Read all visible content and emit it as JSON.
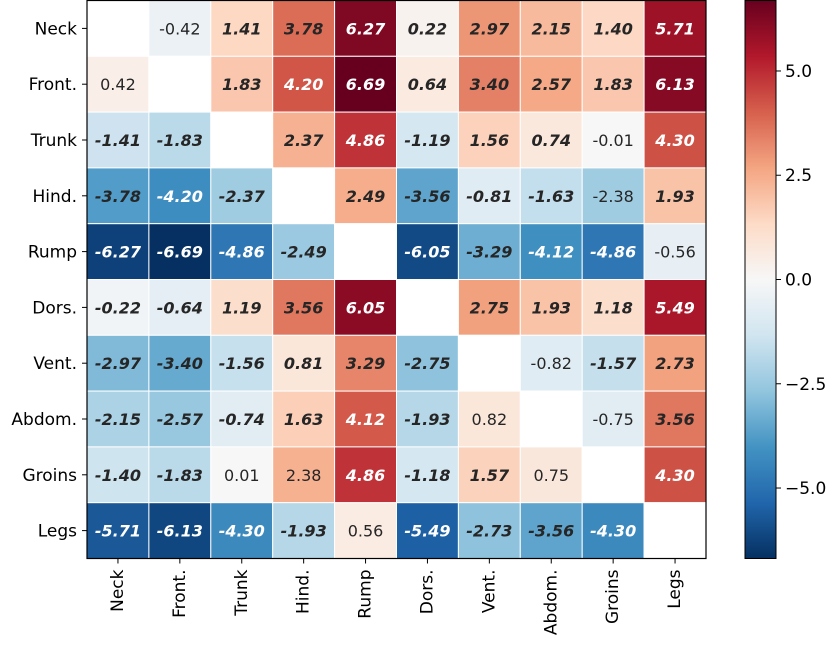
{
  "chart_data": {
    "type": "heatmap",
    "title": "",
    "row_labels": [
      "Neck",
      "Front.",
      "Trunk",
      "Hind.",
      "Rump",
      "Dors.",
      "Vent.",
      "Abdom.",
      "Groins",
      "Legs"
    ],
    "col_labels": [
      "Neck",
      "Front.",
      "Trunk",
      "Hind.",
      "Rump",
      "Dors.",
      "Vent.",
      "Abdom.",
      "Groins",
      "Legs"
    ],
    "values": [
      [
        null,
        -0.42,
        1.41,
        3.78,
        6.27,
        0.22,
        2.97,
        2.15,
        1.4,
        5.71
      ],
      [
        0.42,
        null,
        1.83,
        4.2,
        6.69,
        0.64,
        3.4,
        2.57,
        1.83,
        6.13
      ],
      [
        -1.41,
        -1.83,
        null,
        2.37,
        4.86,
        -1.19,
        1.56,
        0.74,
        -0.01,
        4.3
      ],
      [
        -3.78,
        -4.2,
        -2.37,
        null,
        2.49,
        -3.56,
        -0.81,
        -1.63,
        -2.38,
        1.93
      ],
      [
        -6.27,
        -6.69,
        -4.86,
        -2.49,
        null,
        -6.05,
        -3.29,
        -4.12,
        -4.86,
        -0.56
      ],
      [
        -0.22,
        -0.64,
        1.19,
        3.56,
        6.05,
        null,
        2.75,
        1.93,
        1.18,
        5.49
      ],
      [
        -2.97,
        -3.4,
        -1.56,
        0.81,
        3.29,
        -2.75,
        null,
        -0.82,
        -1.57,
        2.73
      ],
      [
        -2.15,
        -2.57,
        -0.74,
        1.63,
        4.12,
        -1.93,
        0.82,
        null,
        -0.75,
        3.56
      ],
      [
        -1.4,
        -1.83,
        0.01,
        2.38,
        4.86,
        -1.18,
        1.57,
        0.75,
        null,
        4.3
      ],
      [
        -5.71,
        -6.13,
        -4.3,
        -1.93,
        0.56,
        -5.49,
        -2.73,
        -3.56,
        -4.3,
        null
      ]
    ],
    "labels": [
      [
        "",
        "-0.42",
        "1.41",
        "3.78",
        "6.27",
        "0.22",
        "2.97",
        "2.15",
        "1.40",
        "5.71"
      ],
      [
        "0.42",
        "",
        "1.83",
        "4.20",
        "6.69",
        "0.64",
        "3.40",
        "2.57",
        "1.83",
        "6.13"
      ],
      [
        "-1.41",
        "-1.83",
        "",
        "2.37",
        "4.86",
        "-1.19",
        "1.56",
        "0.74",
        "-0.01",
        "4.30"
      ],
      [
        "-3.78",
        "-4.20",
        "-2.37",
        "",
        "2.49",
        "-3.56",
        "-0.81",
        "-1.63",
        "-2.38",
        "1.93"
      ],
      [
        "-6.27",
        "-6.69",
        "-4.86",
        "-2.49",
        "",
        "-6.05",
        "-3.29",
        "-4.12",
        "-4.86",
        "-0.56"
      ],
      [
        "-0.22",
        "-0.64",
        "1.19",
        "3.56",
        "6.05",
        "",
        "2.75",
        "1.93",
        "1.18",
        "5.49"
      ],
      [
        "-2.97",
        "-3.40",
        "-1.56",
        "0.81",
        "3.29",
        "-2.75",
        "",
        "-0.82",
        "-1.57",
        "2.73"
      ],
      [
        "-2.15",
        "-2.57",
        "-0.74",
        "1.63",
        "4.12",
        "-1.93",
        "0.82",
        "",
        "-0.75",
        "3.56"
      ],
      [
        "-1.40",
        "-1.83",
        "0.01",
        "2.38",
        "4.86",
        "-1.18",
        "1.57",
        "0.75",
        "",
        "4.30"
      ],
      [
        "-5.71",
        "-6.13",
        "-4.30",
        "-1.93",
        "0.56",
        "-5.49",
        "-2.73",
        "-3.56",
        "-4.30",
        ""
      ]
    ],
    "emphasized": [
      [
        false,
        false,
        true,
        true,
        true,
        true,
        true,
        true,
        true,
        true
      ],
      [
        false,
        false,
        true,
        true,
        true,
        true,
        true,
        true,
        true,
        true
      ],
      [
        true,
        true,
        false,
        true,
        true,
        true,
        true,
        true,
        false,
        true
      ],
      [
        true,
        true,
        true,
        false,
        true,
        true,
        true,
        true,
        false,
        true
      ],
      [
        true,
        true,
        true,
        true,
        false,
        true,
        true,
        true,
        true,
        false
      ],
      [
        true,
        true,
        true,
        true,
        true,
        false,
        true,
        true,
        true,
        true
      ],
      [
        true,
        true,
        true,
        true,
        true,
        true,
        false,
        false,
        true,
        true
      ],
      [
        true,
        true,
        true,
        true,
        true,
        true,
        false,
        false,
        false,
        true
      ],
      [
        true,
        true,
        false,
        false,
        true,
        true,
        true,
        false,
        false,
        true
      ],
      [
        true,
        true,
        true,
        true,
        false,
        true,
        true,
        true,
        true,
        false
      ]
    ],
    "colormap": "RdBu_r",
    "vmin": -6.69,
    "vmax": 6.69,
    "colorbar": {
      "ticks": [
        -5.0,
        -2.5,
        0.0,
        2.5,
        5.0
      ],
      "tick_labels": [
        "−5.0",
        "−2.5",
        "0.0",
        "2.5",
        "5.0"
      ]
    },
    "xlabel": "",
    "ylabel": ""
  }
}
